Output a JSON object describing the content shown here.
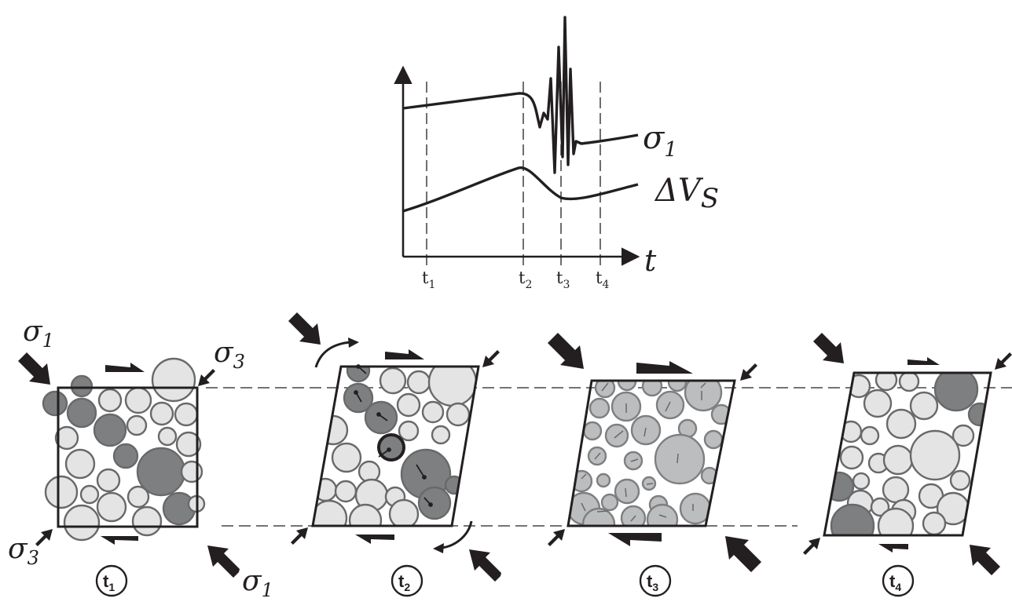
{
  "graph": {
    "time_axis_label": "t",
    "ticks": [
      "t",
      "t",
      "t",
      "t"
    ],
    "tick_subscripts": [
      "1",
      "2",
      "3",
      "4"
    ],
    "curves": [
      {
        "symbol": "σ",
        "subscript": "1"
      },
      {
        "symbol": "ΔV",
        "subscript": "S"
      }
    ]
  },
  "stress_labels": {
    "sigma": "σ",
    "one": "1",
    "three": "3"
  },
  "stages": [
    {
      "letter": "t",
      "sub": "1"
    },
    {
      "letter": "t",
      "sub": "2"
    },
    {
      "letter": "t",
      "sub": "3"
    },
    {
      "letter": "t",
      "sub": "4"
    }
  ],
  "colors": {
    "ink": "#231f20",
    "grain_light": "#e4e4e5",
    "grain_dark": "#7e7f81",
    "grain_mid": "#bcbdbf",
    "grain_stroke": "#68696b"
  }
}
